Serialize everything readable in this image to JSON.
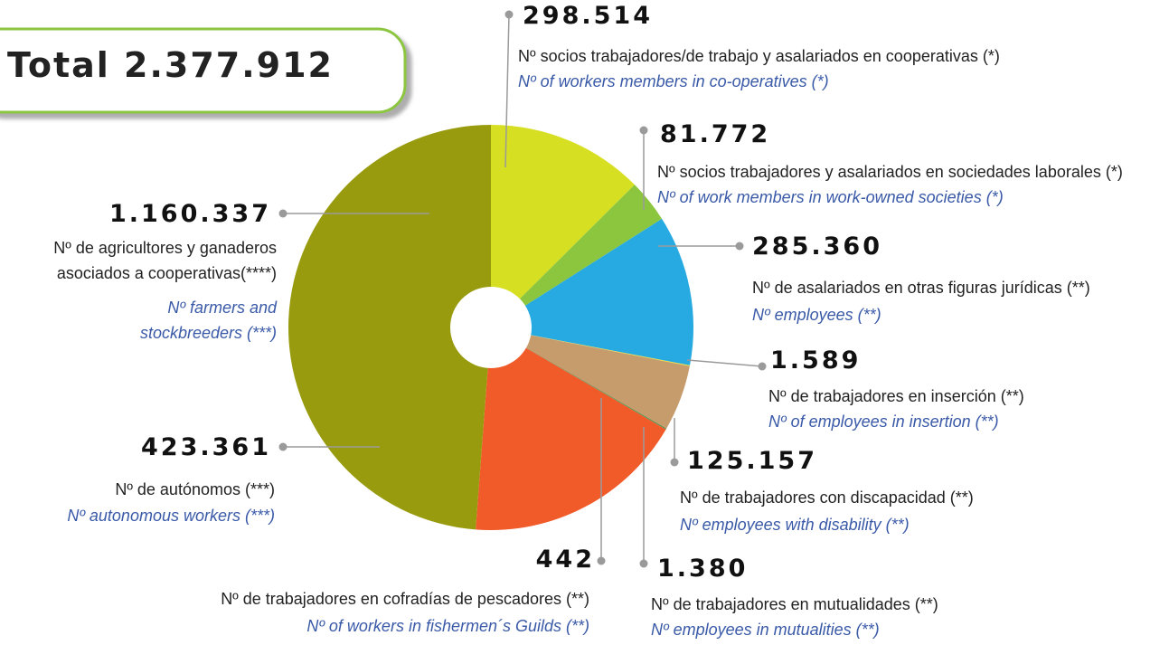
{
  "chart_data": {
    "type": "pie",
    "title": "Total 2.377.912",
    "categories": [
      "Nº socios trabajadores/de trabajo y asalariados en cooperativas (*)",
      "Nº socios trabajadores y asalariados en sociedades laborales (*)",
      "Nº de asalariados en otras figuras jurídicas  (**)",
      "Nº de trabajadores en inserción (**)",
      "Nº de trabajadores con discapacidad (**)",
      "Nº de trabajadores en mutualidades (**)",
      "Nº de trabajadores en cofradías de pescadores (**)",
      "Nº de autónomos (***)",
      "Nº de agricultores y ganaderos asociados a cooperativas(****)"
    ],
    "categories_en": [
      "Nº of workers members in co-operatives (*)",
      "Nº of work members in work-owned societies (*)",
      "Nº employees (**)",
      "Nº of employees in insertion (**)",
      "Nº employees with disability (**)",
      "Nº employees in mutualities (**)",
      "Nº of workers in fishermen´s Guilds (**)",
      "Nº autonomous workers (***)",
      "Nº farmers and stockbreeders (***)"
    ],
    "values": [
      298514,
      81772,
      285360,
      1589,
      125157,
      1380,
      442,
      423361,
      1160337
    ],
    "value_labels": [
      "298.514",
      "81.772",
      "285.360",
      "1.589",
      "125.157",
      "1.380",
      "442",
      "423.361",
      "1.160.337"
    ],
    "colors": [
      "#d7df23",
      "#8cc63f",
      "#27aae1",
      "#f2e32b",
      "#c69c6d",
      "#2a8c3f",
      "#6d8a2a",
      "#f15a29",
      "#999b0e"
    ]
  }
}
